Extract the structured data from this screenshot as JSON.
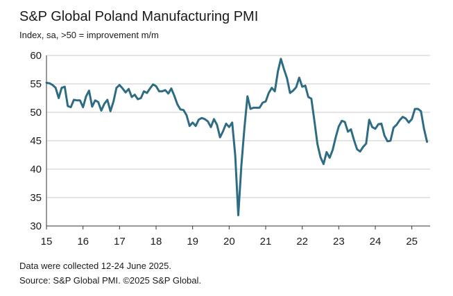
{
  "chart_data": {
    "type": "line",
    "title": "S&P Global Poland Manufacturing PMI",
    "subtitle": "Index, sa, >50 = improvement m/m",
    "xlabel": "",
    "ylabel": "",
    "ylim": [
      30,
      60
    ],
    "yticks": [
      30,
      35,
      40,
      45,
      50,
      55,
      60
    ],
    "xticks": [
      "15",
      "16",
      "17",
      "18",
      "19",
      "20",
      "21",
      "22",
      "23",
      "24",
      "25"
    ],
    "x_start": "2015-01",
    "grid": true,
    "line_color": "#2e6c84",
    "series": [
      {
        "name": "S&P Global Poland Manufacturing PMI",
        "values": [
          55.2,
          55.1,
          54.8,
          54.3,
          52.5,
          54.3,
          54.5,
          51.1,
          50.9,
          52.2,
          52.1,
          52.1,
          50.9,
          52.8,
          53.8,
          51.0,
          52.1,
          51.8,
          50.3,
          51.5,
          52.2,
          50.2,
          51.9,
          54.3,
          54.8,
          54.2,
          53.5,
          54.1,
          52.7,
          53.1,
          52.3,
          52.5,
          53.7,
          53.4,
          54.2,
          54.9,
          54.6,
          53.7,
          53.7,
          53.9,
          53.3,
          54.2,
          52.9,
          51.4,
          50.5,
          50.4,
          49.5,
          47.6,
          48.2,
          47.6,
          48.7,
          49.0,
          48.8,
          48.4,
          47.4,
          48.8,
          47.8,
          45.6,
          46.7,
          48.0,
          47.4,
          48.2,
          42.4,
          31.9,
          40.6,
          47.2,
          52.8,
          50.6,
          50.8,
          50.8,
          50.8,
          51.7,
          51.9,
          53.4,
          54.3,
          53.7,
          57.2,
          59.4,
          57.6,
          56.0,
          53.4,
          53.8,
          54.4,
          56.1,
          54.5,
          54.7,
          52.7,
          52.4,
          48.5,
          44.4,
          42.1,
          40.9,
          43.0,
          42.0,
          43.4,
          45.6,
          47.5,
          48.5,
          48.3,
          46.6,
          47.0,
          45.1,
          43.5,
          43.1,
          43.9,
          44.5,
          48.7,
          47.4,
          47.1,
          47.9,
          48.0,
          45.9,
          44.9,
          45.0,
          47.3,
          47.8,
          48.6,
          49.2,
          48.9,
          48.2,
          48.8,
          50.6,
          50.6,
          50.2,
          47.1,
          44.8
        ]
      }
    ]
  },
  "footer": {
    "note": "Data were collected 12-24 June 2025.",
    "source": "Source: S&P Global PMI. ©2025 S&P Global."
  }
}
